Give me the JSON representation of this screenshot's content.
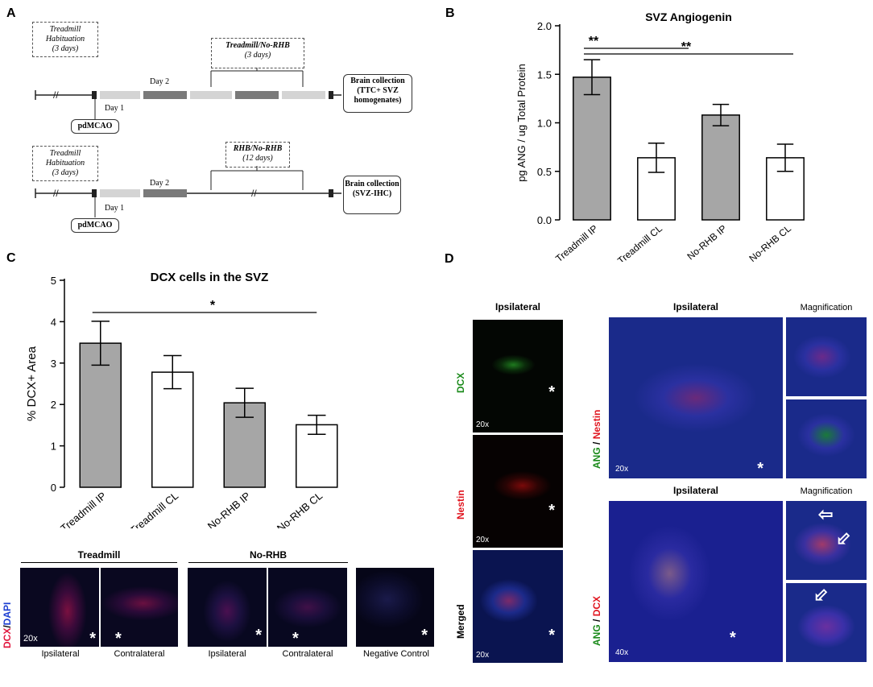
{
  "panel_letters": {
    "a": "A",
    "b": "B",
    "c": "C",
    "d": "D"
  },
  "timeline": {
    "habituation_label": "Treadmill Habituation",
    "habituation_days": "(3 days)",
    "top_bracket_label": "Treadmill/No-RHB",
    "top_bracket_days": "(3 days)",
    "bottom_bracket_label": "RHB/No-RHB",
    "bottom_bracket_days": "(12 days)",
    "day1": "Day 1",
    "day2": "Day 2",
    "pdmcao": "pdMCAO",
    "collection_top": "Brain collection (TTC+ SVZ homogenates)",
    "collection_bottom": "Brain collection (SVZ-IHC)"
  },
  "chart_data": [
    {
      "type": "bar",
      "title": "SVZ Angiogenin",
      "ylabel": "pg ANG / ug Total Protein",
      "xlabel": "",
      "categories": [
        "Treadmill IP",
        "Treadmill CL",
        "No-RHB IP",
        "No-RHB CL"
      ],
      "values": [
        1.47,
        0.64,
        1.08,
        0.64
      ],
      "errors": [
        0.18,
        0.15,
        0.11,
        0.14
      ],
      "bar_colors": [
        "#a6a6a6",
        "#ffffff",
        "#a6a6a6",
        "#ffffff"
      ],
      "ylim": [
        0,
        2.0
      ],
      "yticks": [
        "0.0",
        "0.5",
        "1.0",
        "1.5",
        "2.0"
      ],
      "significance": [
        {
          "from": 0,
          "to": 1,
          "label": "**"
        },
        {
          "from": 0,
          "to": 3,
          "label": "**"
        }
      ]
    },
    {
      "type": "bar",
      "title": "DCX cells in the SVZ",
      "ylabel": "% DCX+ Area",
      "xlabel": "",
      "categories": [
        "Treadmill IP",
        "Treadmill CL",
        "No-RHB IP",
        "No-RHB CL"
      ],
      "values": [
        3.48,
        2.78,
        2.04,
        1.51
      ],
      "errors": [
        0.53,
        0.4,
        0.35,
        0.23
      ],
      "bar_colors": [
        "#a6a6a6",
        "#ffffff",
        "#a6a6a6",
        "#ffffff"
      ],
      "ylim": [
        0,
        5
      ],
      "yticks": [
        "0",
        "1",
        "2",
        "3",
        "4",
        "5"
      ],
      "significance": [
        {
          "from": 0,
          "to": 3,
          "label": "*"
        }
      ]
    }
  ],
  "panel_c_images": {
    "group_treadmill": "Treadmill",
    "group_norhb": "No-RHB",
    "stain_dcx": "DCX",
    "stain_sep": "/",
    "stain_dapi": "DAPI",
    "mag": "20x",
    "ipsilateral": "Ipsilateral",
    "contralateral": "Contralateral",
    "negative_control": "Negative Control",
    "star": "*"
  },
  "panel_d_images": {
    "ipsilateral": "Ipsilateral",
    "magnification": "Magnification",
    "dcx": "DCX",
    "nestin": "Nestin",
    "merged": "Merged",
    "ang": "ANG",
    "sep": "/",
    "mag20": "20x",
    "mag40": "40x",
    "star": "*",
    "arrow": "⇦"
  },
  "colors": {
    "green": "#1a8a1a",
    "red": "#e0141e",
    "blue": "#1d3fd1",
    "bar_gray": "#a6a6a6"
  }
}
